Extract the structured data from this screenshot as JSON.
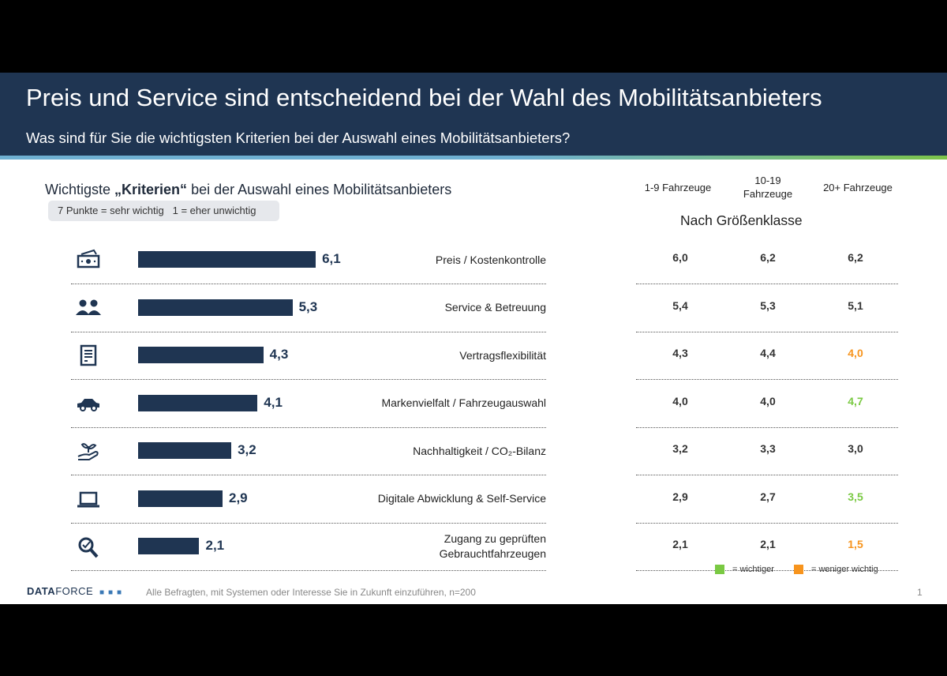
{
  "header": {
    "title": "Preis und Service sind entscheidend bei der Wahl des Mobilitätsanbieters",
    "subtitle": "Was sind für Sie die wichtigsten Kriterien bei der Auswahl eines Mobilitätsanbieters?"
  },
  "chart_title": {
    "pre": "Wichtigste ",
    "bold": "„Kriterien“",
    "post": " bei der Auswahl eines Mobilitätsanbieters"
  },
  "scale_note": "7 Punkte = sehr wichtig   1 = eher unwichtig",
  "group_title": "Nach Größenklasse",
  "colors": {
    "bar": "#1f3552",
    "more_important": "#7ac943",
    "less_important": "#f7941d",
    "default": "#333333"
  },
  "chart_data": {
    "type": "bar",
    "orientation": "horizontal",
    "xlim": [
      0,
      7
    ],
    "categories": [
      "Preis / Kostenkontrolle",
      "Service & Betreuung",
      "Vertragsflexibilität",
      "Markenvielfalt / Fahrzeugauswahl",
      "Nachhaltigkeit / CO₂-Bilanz",
      "Digitale Abwicklung & Self-Service",
      "Zugang zu geprüften Gebrauchtfahrzeugen"
    ],
    "icons": [
      "money-icon",
      "people-icon",
      "contract-icon",
      "car-icon",
      "plant-hand-icon",
      "laptop-icon",
      "magnifier-check-icon"
    ],
    "values": [
      6.1,
      5.3,
      4.3,
      4.1,
      3.2,
      2.9,
      2.1
    ],
    "value_labels": [
      "6,1",
      "5,3",
      "4,3",
      "4,1",
      "3,2",
      "2,9",
      "2,1"
    ],
    "table": {
      "columns": [
        "1-9 Fahrzeuge",
        "10-19 Fahrzeuge",
        "20+ Fahrzeuge"
      ],
      "rows": [
        [
          {
            "v": "6,0",
            "s": "default"
          },
          {
            "v": "6,2",
            "s": "default"
          },
          {
            "v": "6,2",
            "s": "default"
          }
        ],
        [
          {
            "v": "5,4",
            "s": "default"
          },
          {
            "v": "5,3",
            "s": "default"
          },
          {
            "v": "5,1",
            "s": "default"
          }
        ],
        [
          {
            "v": "4,3",
            "s": "default"
          },
          {
            "v": "4,4",
            "s": "default"
          },
          {
            "v": "4,0",
            "s": "less_important"
          }
        ],
        [
          {
            "v": "4,0",
            "s": "default"
          },
          {
            "v": "4,0",
            "s": "default"
          },
          {
            "v": "4,7",
            "s": "more_important"
          }
        ],
        [
          {
            "v": "3,2",
            "s": "default"
          },
          {
            "v": "3,3",
            "s": "default"
          },
          {
            "v": "3,0",
            "s": "default"
          }
        ],
        [
          {
            "v": "2,9",
            "s": "default"
          },
          {
            "v": "2,7",
            "s": "default"
          },
          {
            "v": "3,5",
            "s": "more_important"
          }
        ],
        [
          {
            "v": "2,1",
            "s": "default"
          },
          {
            "v": "2,1",
            "s": "default"
          },
          {
            "v": "1,5",
            "s": "less_important"
          }
        ]
      ]
    }
  },
  "legend": {
    "more": "= wichtiger",
    "less": "= weniger wichtig"
  },
  "footer": {
    "logo": "DATAFORCE",
    "note": "Alle Befragten, mit Systemen oder Interesse Sie in Zukunft einzuführen, n=200",
    "page": "1"
  }
}
